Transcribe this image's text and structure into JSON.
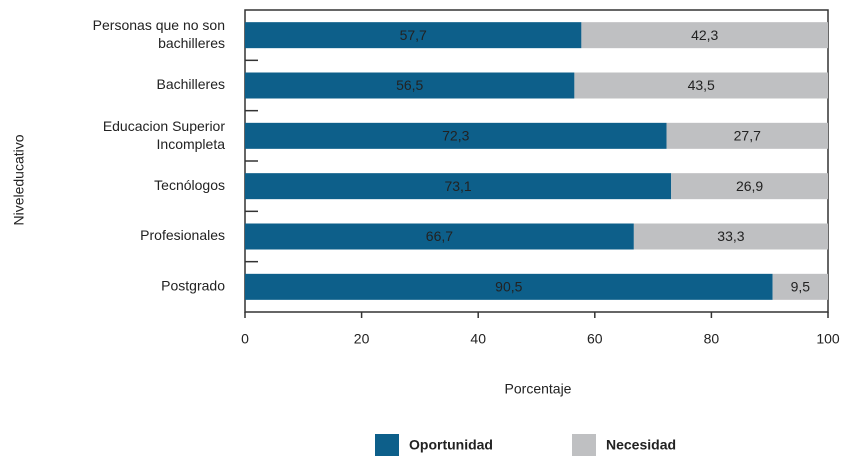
{
  "chart_data": {
    "type": "stacked-barh",
    "ylabel": "Niveleducativo",
    "xlabel": "Porcentaje",
    "categories": [
      "Personas que no son bachilleres",
      "Bachilleres",
      "Educacion Superior Incompleta",
      "Tecnólogos",
      "Profesionales",
      "Postgrado"
    ],
    "series": [
      {
        "name": "Oportunidad",
        "color": "#0d5f8a",
        "values": [
          57.7,
          56.5,
          72.3,
          73.1,
          66.7,
          90.5
        ],
        "value_labels": [
          "57,7",
          "56,5",
          "72,3",
          "73,1",
          "66,7",
          "90,5"
        ]
      },
      {
        "name": "Necesidad",
        "color": "#bfc0c2",
        "values": [
          42.3,
          43.5,
          27.7,
          26.9,
          33.3,
          9.5
        ],
        "value_labels": [
          "42,3",
          "43,5",
          "27,7",
          "26,9",
          "33,3",
          "9,5"
        ]
      }
    ],
    "xlim": [
      0,
      100
    ],
    "xticks": [
      0,
      20,
      40,
      60,
      80,
      100
    ],
    "legend": "bottom"
  }
}
